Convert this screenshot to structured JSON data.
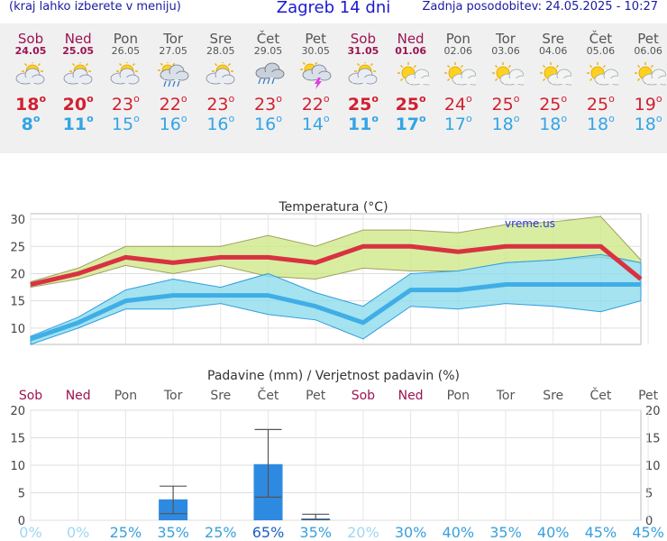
{
  "header": {
    "hint": "(kraj lahko izberete v meniju)",
    "title": "Zagreb 14 dni",
    "updated": "Zadnja posodobitev: 24.05.2025 - 10:27"
  },
  "days": [
    {
      "name": "Sob",
      "date": "24.05",
      "weekend": true,
      "icon": "partly-cloudy-icon",
      "tmax": "18",
      "tmin": "8"
    },
    {
      "name": "Ned",
      "date": "25.05",
      "weekend": true,
      "icon": "partly-cloudy-icon",
      "tmax": "20",
      "tmin": "11"
    },
    {
      "name": "Pon",
      "date": "26.05",
      "weekend": false,
      "icon": "partly-cloudy-icon",
      "tmax": "23",
      "tmin": "15"
    },
    {
      "name": "Tor",
      "date": "27.05",
      "weekend": false,
      "icon": "sun-cloud-rain-icon",
      "tmax": "22",
      "tmin": "16"
    },
    {
      "name": "Sre",
      "date": "28.05",
      "weekend": false,
      "icon": "partly-cloudy-icon",
      "tmax": "23",
      "tmin": "16"
    },
    {
      "name": "Čet",
      "date": "29.05",
      "weekend": false,
      "icon": "cloud-rain-icon",
      "tmax": "23",
      "tmin": "16"
    },
    {
      "name": "Pet",
      "date": "30.05",
      "weekend": false,
      "icon": "thunderstorm-icon",
      "tmax": "22",
      "tmin": "14"
    },
    {
      "name": "Sob",
      "date": "31.05",
      "weekend": true,
      "icon": "partly-cloudy-icon",
      "tmax": "25",
      "tmin": "11"
    },
    {
      "name": "Ned",
      "date": "01.06",
      "weekend": true,
      "icon": "mostly-sunny-icon",
      "tmax": "25",
      "tmin": "17"
    },
    {
      "name": "Pon",
      "date": "02.06",
      "weekend": false,
      "icon": "mostly-sunny-icon",
      "tmax": "24",
      "tmin": "17"
    },
    {
      "name": "Tor",
      "date": "03.06",
      "weekend": false,
      "icon": "mostly-sunny-icon",
      "tmax": "25",
      "tmin": "18"
    },
    {
      "name": "Sre",
      "date": "04.06",
      "weekend": false,
      "icon": "mostly-sunny-icon",
      "tmax": "25",
      "tmin": "18"
    },
    {
      "name": "Čet",
      "date": "05.06",
      "weekend": false,
      "icon": "mostly-sunny-icon",
      "tmax": "25",
      "tmin": "18"
    },
    {
      "name": "Pet",
      "date": "06.06",
      "weekend": false,
      "icon": "mostly-sunny-icon",
      "tmax": "19",
      "tmin": "18"
    }
  ],
  "degree_symbol": "o",
  "chart_data": [
    {
      "type": "line",
      "title": "Temperatura (°C)",
      "watermark": "vreme.us",
      "ylim": [
        7,
        31
      ],
      "yticks": [
        10,
        15,
        20,
        25,
        30
      ],
      "grid": true,
      "series": [
        {
          "role": "max",
          "color": "#d83242",
          "values": [
            18,
            20,
            23,
            22,
            23,
            23,
            22,
            25,
            25,
            24,
            25,
            25,
            25,
            19
          ]
        },
        {
          "role": "min",
          "color": "#40aee6",
          "values": [
            8,
            11,
            15,
            16,
            16,
            16,
            14,
            11,
            17,
            17,
            18,
            18,
            18,
            18
          ]
        }
      ],
      "bands": [
        {
          "role": "max-range",
          "color": "#cfe88a",
          "upper": [
            18.5,
            21,
            25,
            25,
            25,
            27,
            25,
            28,
            28,
            27.5,
            29,
            29.5,
            30.5,
            22.5
          ],
          "lower": [
            17.5,
            19,
            21.5,
            20,
            21.5,
            19.5,
            19,
            21,
            20.5,
            20.5,
            22,
            22.5,
            23,
            22
          ]
        },
        {
          "role": "min-range",
          "color": "#8fdcec",
          "upper": [
            8.5,
            12,
            17,
            19,
            17.5,
            20,
            16.5,
            14,
            20,
            20.5,
            22,
            22.5,
            23.5,
            22
          ],
          "lower": [
            7,
            10,
            13.5,
            13.5,
            14.5,
            12.5,
            11.5,
            8,
            14,
            13.5,
            14.5,
            14,
            13,
            15
          ]
        }
      ]
    },
    {
      "type": "bar",
      "title": "Padavine (mm) / Verjetnost padavin (%)",
      "ylim": [
        0,
        20
      ],
      "yticks": [
        0,
        5,
        10,
        15,
        20
      ],
      "grid": true,
      "categories": [
        "Sob",
        "Ned",
        "Pon",
        "Tor",
        "Sre",
        "Čet",
        "Pet",
        "Sob",
        "Ned",
        "Pon",
        "Tor",
        "Sre",
        "Čet",
        "Pet"
      ],
      "weekend": [
        true,
        true,
        false,
        false,
        false,
        false,
        false,
        true,
        true,
        false,
        false,
        false,
        false,
        false
      ],
      "values": [
        0,
        0,
        0,
        3.8,
        0,
        10.2,
        0.3,
        0,
        0,
        0,
        0,
        0,
        0,
        0
      ],
      "error_low": [
        null,
        null,
        null,
        1.2,
        null,
        4.2,
        0.1,
        null,
        null,
        null,
        null,
        null,
        null,
        null
      ],
      "error_high": [
        null,
        null,
        null,
        6.2,
        null,
        16.5,
        1.1,
        null,
        null,
        null,
        null,
        null,
        null,
        null
      ],
      "probability": [
        "0%",
        "0%",
        "25%",
        "35%",
        "25%",
        "65%",
        "35%",
        "20%",
        "30%",
        "40%",
        "35%",
        "40%",
        "45%",
        "45%"
      ],
      "probability_colors": [
        "#9ed8f2",
        "#9ed8f2",
        "#3aa0dc",
        "#3aa0dc",
        "#3aa0dc",
        "#1a5fc0",
        "#3aa0dc",
        "#9ed8f2",
        "#3aa0dc",
        "#3aa0dc",
        "#3aa0dc",
        "#3aa0dc",
        "#3aa0dc",
        "#3aa0dc"
      ]
    }
  ]
}
